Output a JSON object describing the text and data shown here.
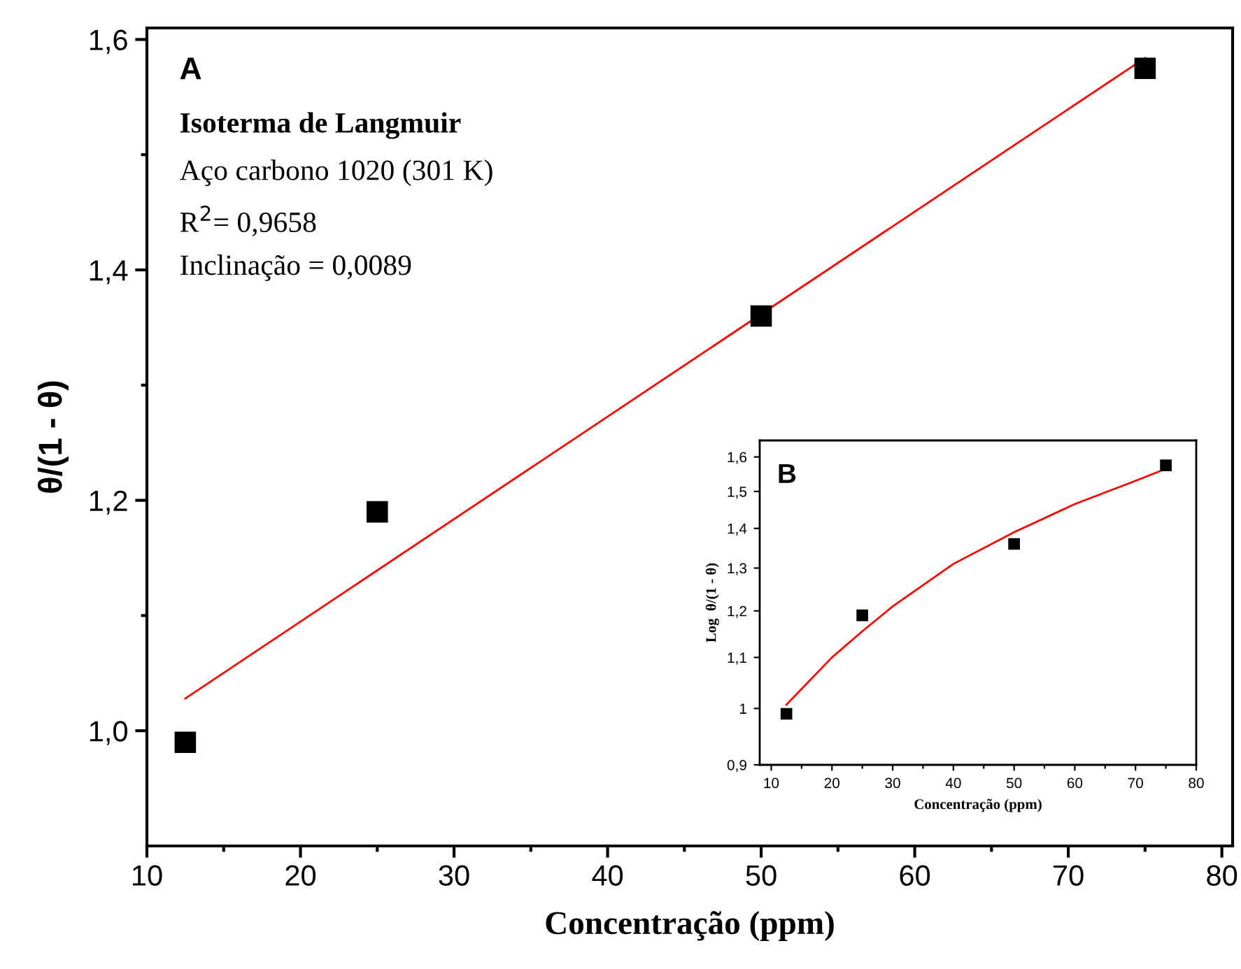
{
  "chart_data": [
    {
      "type": "scatter",
      "xlabel": "Concentração (ppm)",
      "ylabel": "θ/(1 - θ)",
      "annotations": [
        "A",
        "Isoterma de Langmuir",
        "Aço carbono 1020 (301 K)",
        "R$^{2}$= 0,9658",
        "Inclinação = 0,0089"
      ],
      "series": [
        {
          "marker": "square",
          "color": "#000000",
          "x": [
            12.5,
            25,
            50,
            75
          ],
          "values": [
            0.99,
            1.19,
            1.36,
            1.575
          ]
        },
        {
          "type": "line",
          "marker": "none",
          "color": "#ff0000",
          "x": [
            12.5,
            75
          ],
          "values": [
            1.028,
            1.584
          ]
        }
      ],
      "xlim": [
        10,
        80.7
      ],
      "xticks": [
        10,
        20,
        30,
        40,
        50,
        60,
        70,
        80
      ],
      "ylim": [
        0.9,
        1.61
      ],
      "yticks": [
        {
          "value": 1.0,
          "label": "1,0"
        },
        {
          "value": 1.2,
          "label": "1,2"
        },
        {
          "value": 1.4,
          "label": "1,4"
        },
        {
          "value": 1.6,
          "label": "1,6"
        }
      ],
      "grid": false,
      "legend": false
    },
    {
      "type": "scatter",
      "xlabel": "Concentração (ppm)",
      "ylabel": "Log  θ/(1 - θ)",
      "annotations": [
        "B"
      ],
      "log": "y",
      "series": [
        {
          "marker": "square",
          "color": "#000000",
          "x": [
            12.5,
            25,
            50,
            75
          ],
          "values": [
            0.99,
            1.19,
            1.36,
            1.575
          ]
        },
        {
          "type": "line",
          "marker": "none",
          "color": "#ff0000",
          "x": [
            12.5,
            20,
            25,
            30,
            40,
            50,
            60,
            70,
            75
          ],
          "values": [
            1.007,
            1.1,
            1.155,
            1.21,
            1.31,
            1.39,
            1.465,
            1.53,
            1.565
          ]
        }
      ],
      "xlim": [
        8.1,
        80
      ],
      "xticks": [
        10,
        20,
        30,
        40,
        50,
        60,
        70,
        80
      ],
      "ylim": [
        0.9,
        1.65
      ],
      "yticks": [
        {
          "value": 0.9,
          "label": "0,9"
        },
        {
          "value": 1,
          "label": "1"
        },
        {
          "value": 1.1,
          "label": "1,1"
        },
        {
          "value": 1.2,
          "label": "1,2"
        },
        {
          "value": 1.3,
          "label": "1,3"
        },
        {
          "value": 1.4,
          "label": "1,4"
        },
        {
          "value": 1.5,
          "label": "1,5"
        },
        {
          "value": 1.6,
          "label": "1,6"
        }
      ],
      "grid": false,
      "legend": false
    }
  ]
}
